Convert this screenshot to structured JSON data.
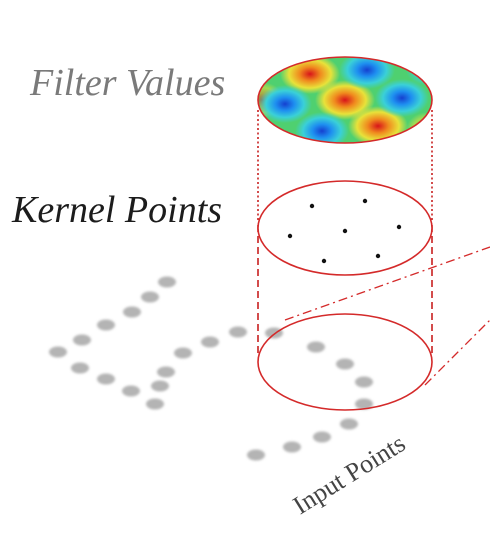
{
  "labels": {
    "filter_values": "Filter Values",
    "kernel_points": "Kernel Points",
    "input_points": "Input Points"
  },
  "colors": {
    "circle_outline": "#d42a2a",
    "point_gray": "#b4b4b4",
    "kernel_point": "#111111",
    "heat_low": "#1a5cd8",
    "heat_mid": "#4fd070",
    "heat_high": "#e02818"
  }
}
